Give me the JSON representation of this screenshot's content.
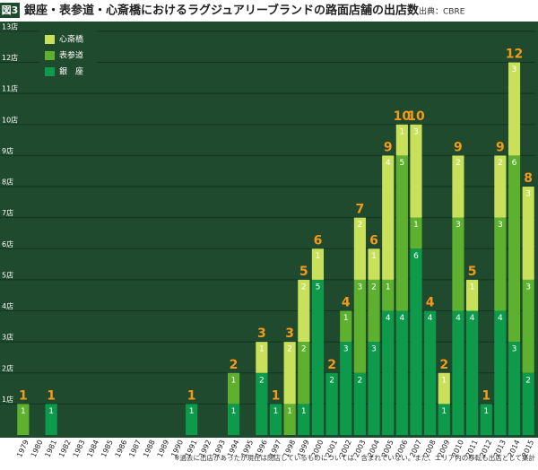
{
  "chart_data": {
    "type": "bar",
    "stacked": true,
    "badge": "図3",
    "title": "銀座・表参道・心斎橋におけるラグジュアリーブランドの路面店舗の出店数",
    "source": "出典：CBRE",
    "footnote": "※過去に出店があったが現在は閉店しているものについては、含まれていない。また、エリア内の移転も出店として集計",
    "categories": [
      "1979",
      "1980",
      "1981",
      "1982",
      "1983",
      "1984",
      "1985",
      "1986",
      "1987",
      "1988",
      "1989",
      "1990",
      "1991",
      "1992",
      "1993",
      "1994",
      "1995",
      "1996",
      "1997",
      "1998",
      "1999",
      "2000",
      "2001",
      "2002",
      "2003",
      "2004",
      "2005",
      "2006",
      "2007",
      "2008",
      "2009",
      "2010",
      "2011",
      "2012",
      "2013",
      "2014",
      "2015"
    ],
    "series": [
      {
        "name": "銀　座",
        "color": "#0e9a4b",
        "values": [
          0,
          0,
          1,
          0,
          0,
          0,
          0,
          0,
          0,
          0,
          0,
          0,
          1,
          0,
          0,
          1,
          0,
          2,
          1,
          0,
          1,
          5,
          2,
          3,
          2,
          3,
          4,
          4,
          6,
          4,
          1,
          4,
          4,
          1,
          4,
          3,
          2
        ]
      },
      {
        "name": "表参道",
        "color": "#5eb12f",
        "values": [
          1,
          0,
          0,
          0,
          0,
          0,
          0,
          0,
          0,
          0,
          0,
          0,
          0,
          0,
          0,
          1,
          0,
          0,
          0,
          1,
          2,
          0,
          0,
          1,
          3,
          2,
          1,
          5,
          1,
          0,
          0,
          3,
          0,
          0,
          3,
          6,
          3
        ]
      },
      {
        "name": "心斎橋",
        "color": "#c9e05b",
        "values": [
          0,
          0,
          0,
          0,
          0,
          0,
          0,
          0,
          0,
          0,
          0,
          0,
          0,
          0,
          0,
          0,
          0,
          1,
          0,
          2,
          2,
          1,
          0,
          0,
          2,
          1,
          4,
          1,
          3,
          0,
          1,
          2,
          1,
          0,
          2,
          3,
          3
        ]
      }
    ],
    "totals": [
      1,
      null,
      1,
      null,
      null,
      null,
      null,
      null,
      null,
      null,
      null,
      null,
      1,
      null,
      null,
      2,
      null,
      3,
      1,
      3,
      5,
      6,
      2,
      4,
      7,
      6,
      9,
      10,
      10,
      4,
      2,
      9,
      5,
      1,
      9,
      12,
      8
    ],
    "totals_color": "#f39a1a",
    "ylim": [
      0,
      13.2
    ],
    "yticks": [
      {
        "value": 1,
        "label": "1店"
      },
      {
        "value": 2,
        "label": "2店"
      },
      {
        "value": 3,
        "label": "3店"
      },
      {
        "value": 4,
        "label": "4店"
      },
      {
        "value": 5,
        "label": "5店"
      },
      {
        "value": 6,
        "label": "6店"
      },
      {
        "value": 7,
        "label": "7店"
      },
      {
        "value": 8,
        "label": "8店"
      },
      {
        "value": 9,
        "label": "9店"
      },
      {
        "value": 10,
        "label": "10店"
      },
      {
        "value": 11,
        "label": "11店"
      },
      {
        "value": 12,
        "label": "12店"
      },
      {
        "value": 13,
        "label": "13店"
      }
    ],
    "grid": true
  }
}
